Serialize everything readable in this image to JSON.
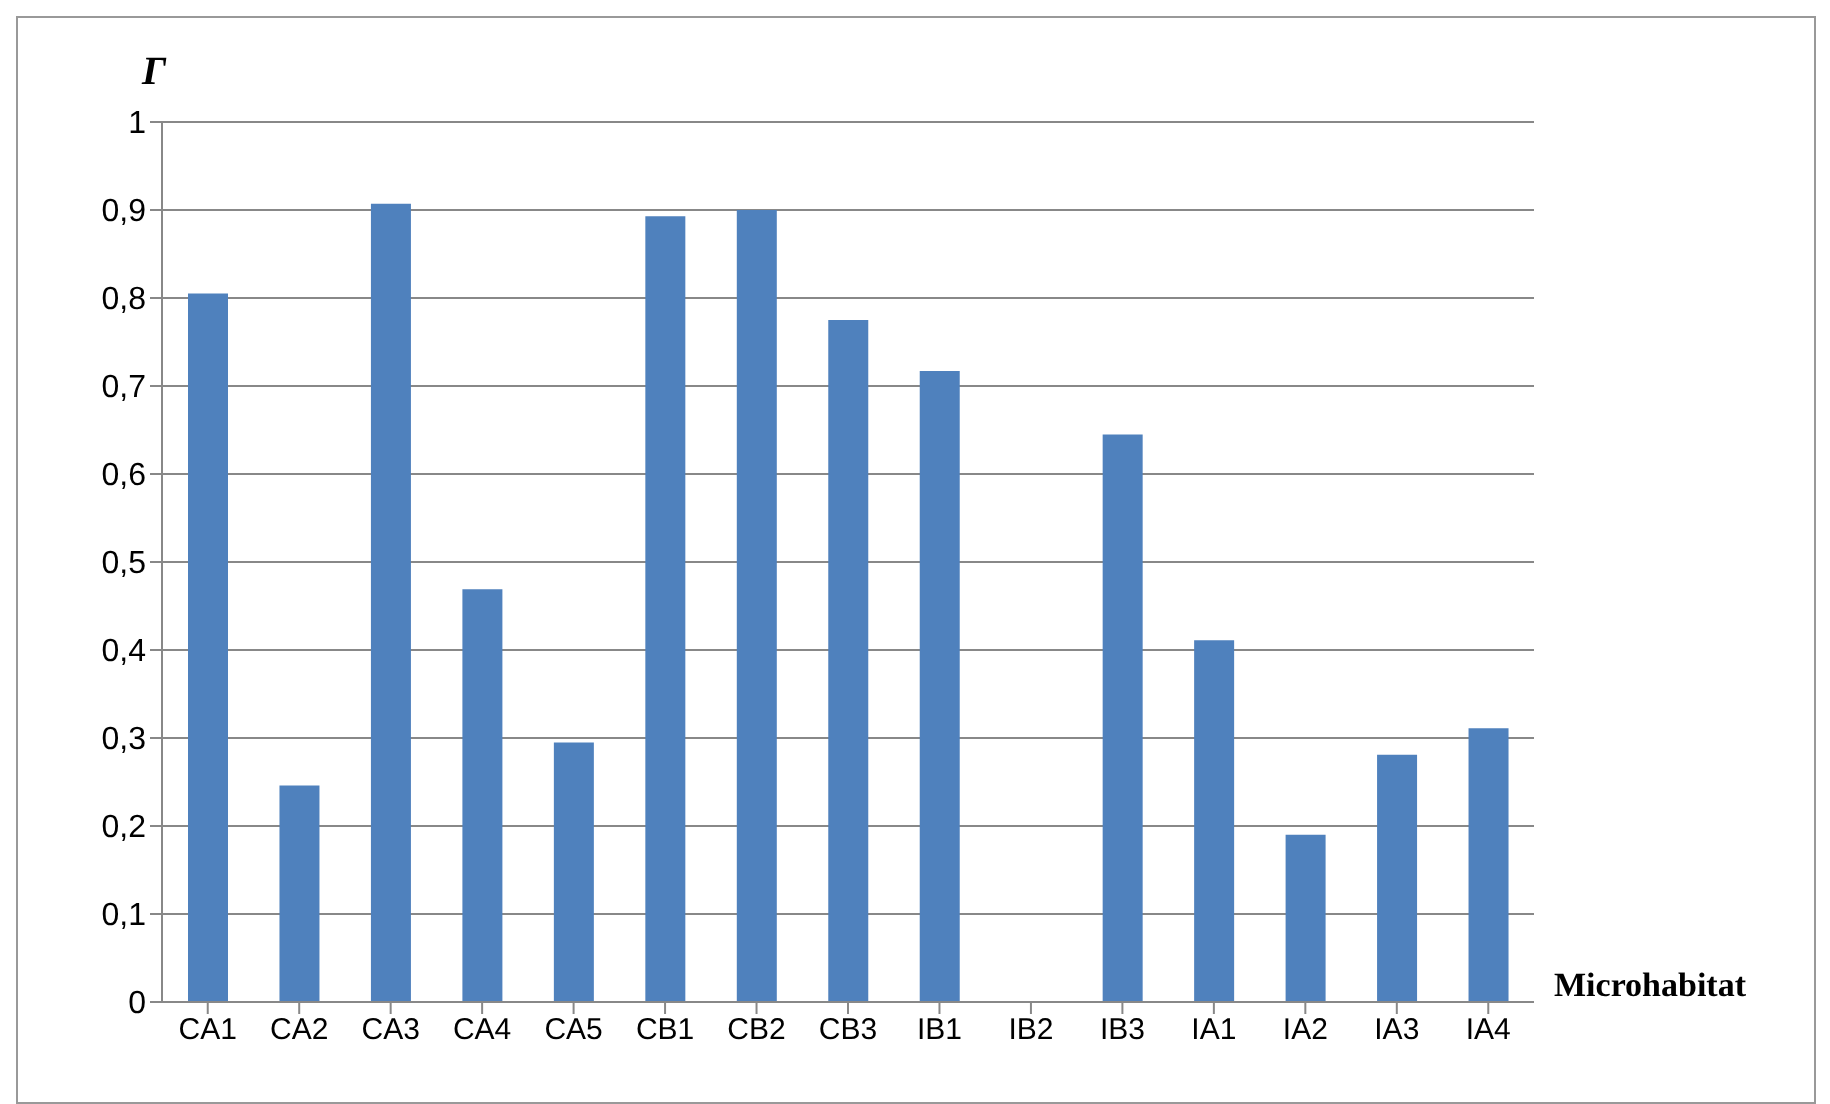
{
  "chart_data": {
    "type": "bar",
    "ylabel": "Г",
    "xlabel": "Microhabitat",
    "categories": [
      "CA1",
      "CA2",
      "CA3",
      "CA4",
      "CA5",
      "CB1",
      "CB2",
      "CB3",
      "IB1",
      "IB2",
      "IB3",
      "IA1",
      "IA2",
      "IA3",
      "IA4"
    ],
    "values": [
      0.805,
      0.246,
      0.907,
      0.469,
      0.295,
      0.893,
      0.9,
      0.775,
      0.717,
      0,
      0.645,
      0.411,
      0.19,
      0.281,
      0.311
    ],
    "color": "#4f81bd",
    "ylim": [
      0,
      1
    ],
    "yticks": [
      0,
      {
        "value": 0.1,
        "label": "0,1"
      },
      {
        "value": 0.2,
        "label": "0,2"
      },
      {
        "value": 0.3,
        "label": "0,3"
      },
      {
        "value": 0.4,
        "label": "0,4"
      },
      {
        "value": 0.5,
        "label": "0,5"
      },
      {
        "value": 0.6,
        "label": "0,6"
      },
      {
        "value": 0.7,
        "label": "0,7"
      },
      {
        "value": 0.8,
        "label": "0,8"
      },
      {
        "value": 0.9,
        "label": "0,9"
      },
      1
    ],
    "grid": "y"
  }
}
